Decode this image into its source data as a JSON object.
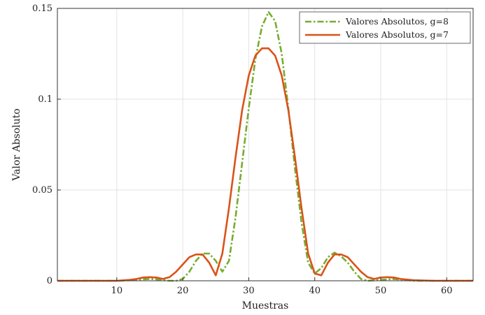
{
  "chart_data": {
    "type": "line",
    "xlabel": "Muestras",
    "ylabel": "Valor Absoluto",
    "xlim": [
      1,
      64
    ],
    "ylim": [
      0,
      0.15
    ],
    "xticks": [
      10,
      20,
      30,
      40,
      50,
      60
    ],
    "yticks": [
      0,
      0.05,
      0.1,
      0.15
    ],
    "ytick_labels": [
      "0",
      "0.05",
      "0.1",
      "0.15"
    ],
    "grid": true,
    "legend_position": "top-right",
    "series": [
      {
        "name": "Valores Absolutos, g=8",
        "color": "#77ac30",
        "dash": "dashdot",
        "x": [
          1,
          5,
          10,
          12,
          14,
          15,
          16,
          17,
          18,
          19,
          20,
          21,
          22,
          23,
          24,
          25,
          26,
          27,
          28,
          29,
          30,
          31,
          32,
          33,
          34,
          35,
          36,
          37,
          38,
          39,
          40,
          41,
          42,
          43,
          44,
          45,
          46,
          47,
          48,
          50,
          52,
          55,
          60,
          64
        ],
        "y": [
          0,
          0,
          0,
          0.0003,
          0.0008,
          0.001,
          0.0008,
          0.0003,
          0,
          0,
          0.001,
          0.005,
          0.011,
          0.015,
          0.015,
          0.011,
          0.005,
          0.011,
          0.035,
          0.065,
          0.095,
          0.122,
          0.14,
          0.148,
          0.143,
          0.125,
          0.095,
          0.062,
          0.032,
          0.01,
          0.004,
          0.007,
          0.013,
          0.0155,
          0.0135,
          0.01,
          0.005,
          0.001,
          0,
          0.0005,
          0.001,
          0,
          0,
          0
        ]
      },
      {
        "name": "Valores Absolutos, g=7",
        "color": "#d95319",
        "dash": "solid",
        "x": [
          1,
          5,
          10,
          12,
          13,
          14,
          15,
          16,
          17,
          18,
          19,
          20,
          21,
          22,
          23,
          24,
          25,
          26,
          27,
          28,
          29,
          30,
          31,
          32,
          33,
          34,
          35,
          36,
          37,
          38,
          39,
          40,
          41,
          42,
          43,
          44,
          45,
          46,
          47,
          48,
          49,
          50,
          51,
          52,
          53,
          55,
          58,
          64
        ],
        "y": [
          0,
          0,
          0,
          0.0005,
          0.001,
          0.0018,
          0.002,
          0.0018,
          0.001,
          0.002,
          0.005,
          0.009,
          0.013,
          0.0145,
          0.0145,
          0.01,
          0.003,
          0.015,
          0.04,
          0.068,
          0.094,
          0.113,
          0.124,
          0.128,
          0.128,
          0.124,
          0.113,
          0.094,
          0.068,
          0.04,
          0.015,
          0.004,
          0.003,
          0.01,
          0.0145,
          0.0145,
          0.013,
          0.009,
          0.005,
          0.002,
          0.001,
          0.0018,
          0.002,
          0.0018,
          0.001,
          0.0003,
          0,
          0
        ]
      }
    ]
  }
}
